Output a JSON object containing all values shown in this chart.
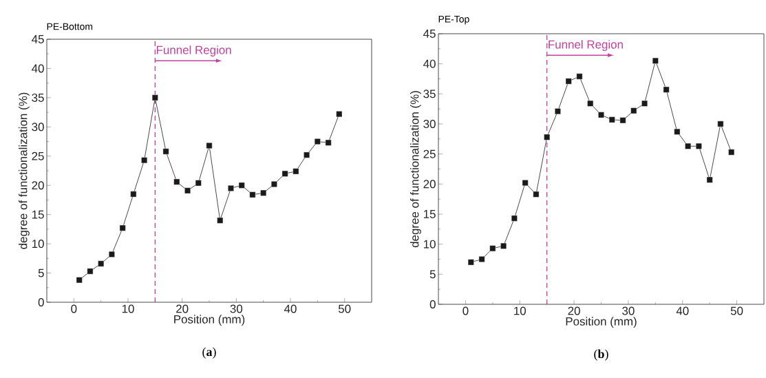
{
  "chart_data": [
    {
      "type": "line",
      "title": "PE-Bottom",
      "xlabel": "Position (mm)",
      "ylabel": "degree of functionalization (%)",
      "x": [
        1,
        3,
        5,
        7,
        9,
        11,
        13,
        15,
        17,
        19,
        21,
        23,
        25,
        27,
        29,
        31,
        33,
        35,
        37,
        39,
        41,
        43,
        45,
        47,
        49
      ],
      "values": [
        3.8,
        5.3,
        6.6,
        8.2,
        12.7,
        18.5,
        24.3,
        35.0,
        25.8,
        20.6,
        19.1,
        20.4,
        26.8,
        14.0,
        19.5,
        20.0,
        18.4,
        18.7,
        20.2,
        22.0,
        22.4,
        25.2,
        27.5,
        27.3,
        32.2
      ],
      "color": "#1a1a1a",
      "marker": "square",
      "line_style": "solid",
      "xlim": [
        -5,
        55
      ],
      "ylim": [
        0,
        45
      ],
      "xticks": [
        0,
        10,
        20,
        30,
        40,
        50
      ],
      "yticks": [
        0,
        5,
        10,
        15,
        20,
        25,
        30,
        35,
        40,
        45
      ],
      "ref_lines": [
        {
          "axis": "x",
          "value": 15,
          "label": "Funnel Region",
          "color": "#c040a0",
          "line_style": "dashed"
        }
      ],
      "annotations": [
        "(**a**)"
      ]
    },
    {
      "type": "line",
      "title": "PE-Top",
      "xlabel": "Position (mm)",
      "ylabel": "degree of functionalization (%)",
      "x": [
        1,
        3,
        5,
        7,
        9,
        11,
        13,
        15,
        17,
        19,
        21,
        23,
        25,
        27,
        29,
        31,
        33,
        35,
        37,
        39,
        41,
        43,
        45,
        47,
        49
      ],
      "values": [
        7.0,
        7.5,
        9.3,
        9.7,
        14.3,
        20.2,
        18.3,
        27.8,
        32.1,
        37.1,
        37.9,
        33.4,
        31.5,
        30.7,
        30.6,
        32.2,
        33.4,
        40.5,
        35.7,
        28.7,
        26.3,
        26.3,
        20.7,
        30.0,
        25.3
      ],
      "color": "#1a1a1a",
      "marker": "square",
      "line_style": "solid",
      "xlim": [
        -5,
        55
      ],
      "ylim": [
        0,
        45
      ],
      "xticks": [
        0,
        10,
        20,
        30,
        40,
        50
      ],
      "yticks": [
        0,
        5,
        10,
        15,
        20,
        25,
        30,
        35,
        40,
        45
      ],
      "ref_lines": [
        {
          "axis": "x",
          "value": 15,
          "label": "Funnel Region",
          "color": "#c040a0",
          "line_style": "dashed"
        }
      ],
      "annotations": [
        "(**b**)"
      ]
    }
  ]
}
